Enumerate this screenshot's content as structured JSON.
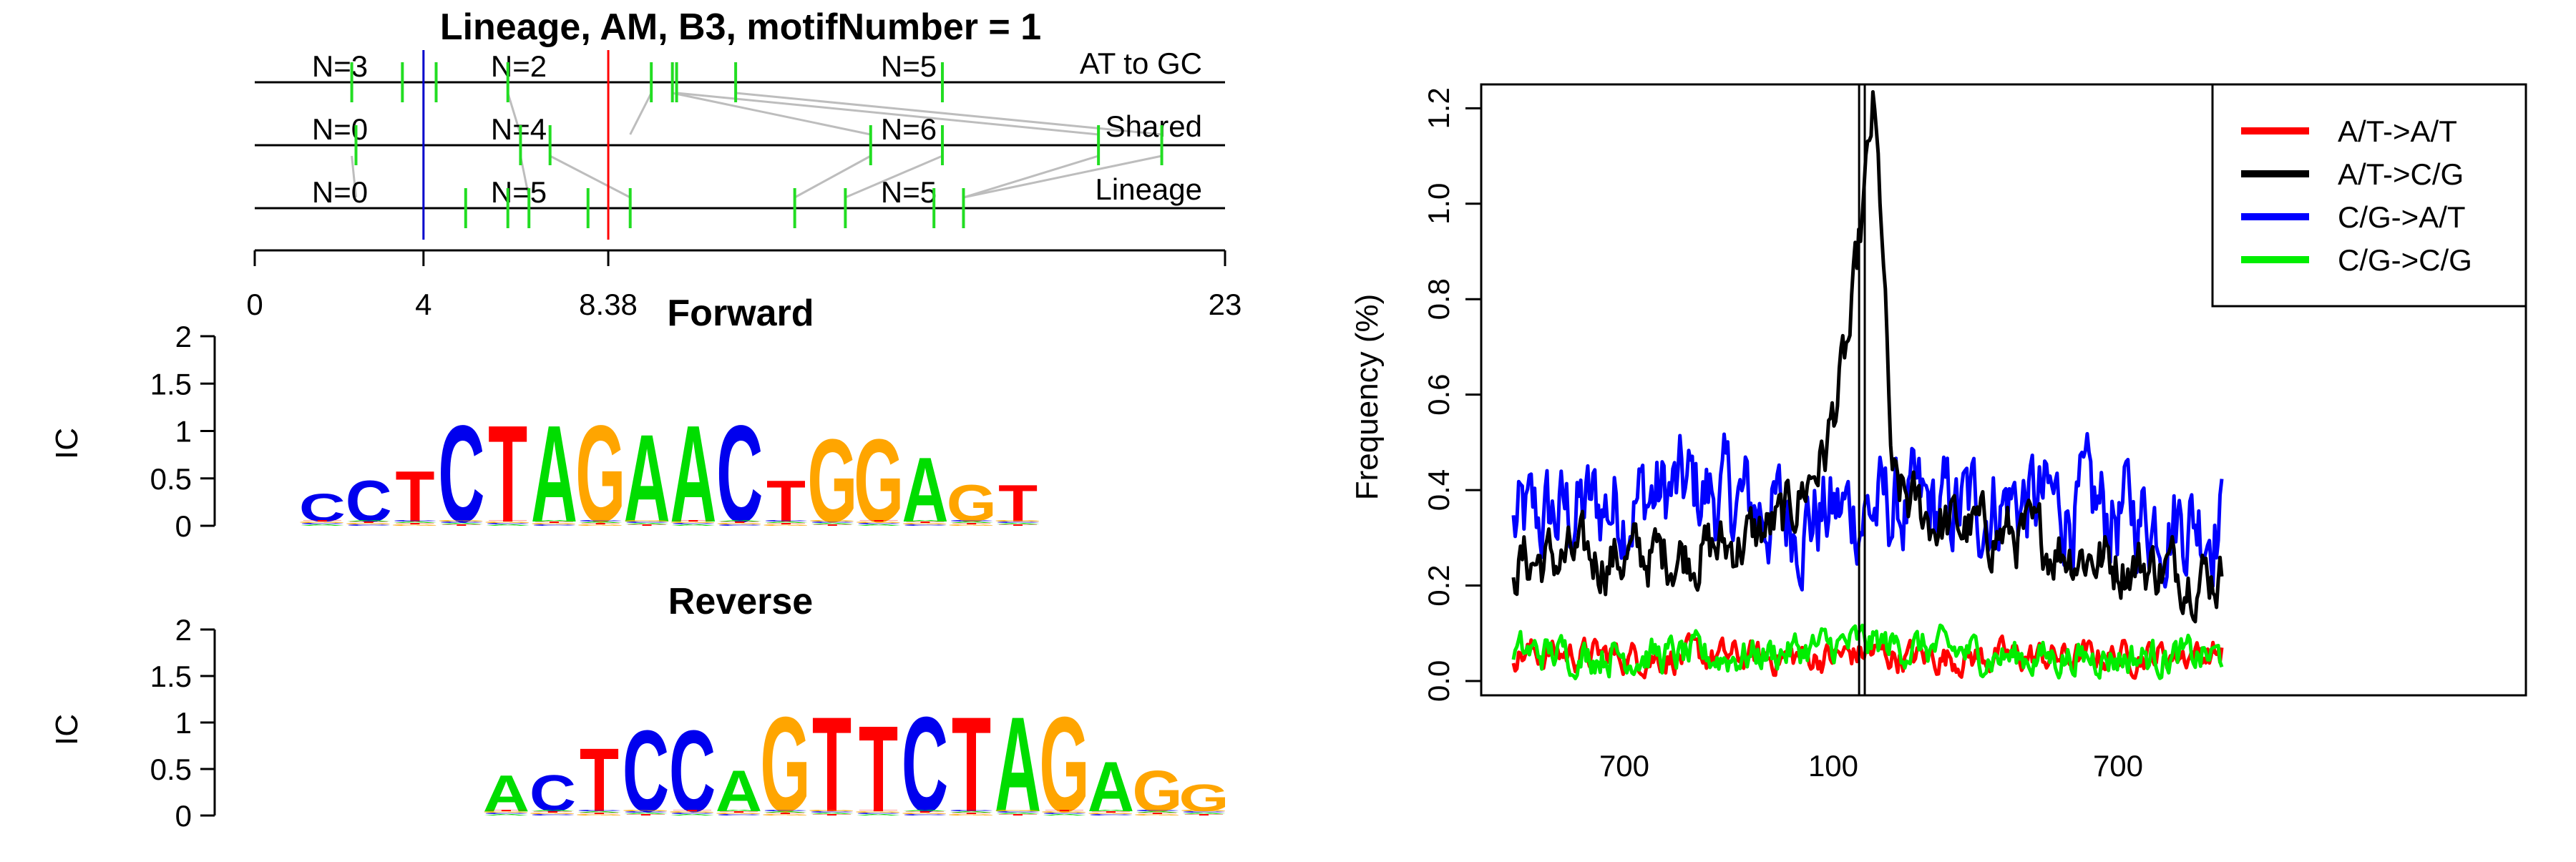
{
  "figure": {
    "left_title": "Lineage, AM, B3, motifNumber = 1",
    "forward_title": "Forward",
    "reverse_title": "Reverse",
    "ic_label": "IC"
  },
  "chart_data": [
    {
      "type": "diagram",
      "title": "Lineage, AM, B3, motifNumber = 1",
      "tracks": [
        {
          "label": "AT to GC",
          "counts": [
            "N=3",
            "N=2",
            "N=5"
          ]
        },
        {
          "label": "Shared",
          "counts": [
            "N=0",
            "N=4",
            "N=6"
          ]
        },
        {
          "label": "Lineage",
          "counts": [
            "N=0",
            "N=5",
            "N=5"
          ]
        }
      ],
      "axis": {
        "min": 0,
        "max": 23,
        "ticks": [
          0,
          4,
          8.38,
          23
        ],
        "tick_labels": [
          "0",
          "4",
          "8.38",
          "23"
        ]
      },
      "markers": [
        {
          "x": 4,
          "color": "#0000cc"
        },
        {
          "x": 8.38,
          "color": "#ff0000"
        }
      ],
      "sites": [
        [
          2.3,
          3.5,
          4.3,
          6.0,
          9.4,
          9.9,
          10.0,
          11.4,
          16.3
        ],
        [
          2.4,
          6.3,
          7.0,
          14.6,
          16.3,
          20.0,
          21.5
        ],
        [
          5.0,
          6.0,
          6.5,
          7.9,
          8.9,
          12.8,
          14.0,
          16.1,
          16.8
        ]
      ],
      "connections": [
        [
          6.0,
          6.3
        ],
        [
          9.4,
          8.9
        ],
        [
          9.9,
          14.6
        ],
        [
          10.0,
          20.0
        ],
        [
          11.4,
          21.5
        ],
        [
          2.3,
          2.4
        ],
        [
          6.3,
          6.5
        ],
        [
          7.0,
          8.9
        ],
        [
          14.6,
          12.8
        ],
        [
          16.3,
          14.0
        ],
        [
          20.0,
          16.8
        ],
        [
          21.5,
          16.8
        ]
      ]
    },
    {
      "type": "sequence_logo",
      "title": "Forward",
      "ylabel": "IC",
      "ylim": [
        0,
        2
      ],
      "yticks": [
        "0",
        "0.5",
        "1",
        "1.5",
        "2"
      ],
      "letters": [
        "C",
        "C",
        "T",
        "C",
        "T",
        "A",
        "G",
        "A",
        "A",
        "C",
        "T",
        "G",
        "G",
        "A",
        "G",
        "T"
      ],
      "heights": [
        0.3,
        0.45,
        0.55,
        1.05,
        1.05,
        1.05,
        1.05,
        0.95,
        1.05,
        1.05,
        0.45,
        0.9,
        0.9,
        0.7,
        0.4,
        0.4
      ]
    },
    {
      "type": "sequence_logo",
      "title": "Reverse",
      "ylabel": "IC",
      "ylim": [
        0,
        2
      ],
      "yticks": [
        "0",
        "0.5",
        "1",
        "1.5",
        "2"
      ],
      "letters": [
        "A",
        "C",
        "T",
        "C",
        "C",
        "A",
        "G",
        "T",
        "T",
        "C",
        "T",
        "A",
        "G",
        "A",
        "G",
        "G"
      ],
      "heights": [
        0.4,
        0.4,
        0.7,
        0.9,
        0.9,
        0.45,
        1.05,
        1.05,
        0.95,
        1.05,
        1.05,
        1.05,
        1.05,
        0.55,
        0.45,
        0.3
      ]
    },
    {
      "type": "line",
      "ylabel": "Frequency (%)",
      "ylim": [
        -0.03,
        1.25
      ],
      "yticks": [
        0.0,
        0.2,
        0.4,
        0.6,
        0.8,
        1.0,
        1.2
      ],
      "ytick_labels": [
        "0.0",
        "0.2",
        "0.4",
        "0.6",
        "0.8",
        "1.0",
        "1.2"
      ],
      "xticks": [
        "700",
        "100",
        "700"
      ],
      "legend_position": "top-right",
      "series": [
        {
          "name": "A/T->A/T",
          "color": "#ff0000",
          "profile": [
            [
              0,
              0.06
            ],
            [
              0.2,
              0.05
            ],
            [
              0.45,
              0.05
            ],
            [
              0.5,
              0.06
            ],
            [
              0.55,
              0.05
            ],
            [
              0.8,
              0.05
            ],
            [
              1,
              0.06
            ]
          ],
          "noise": 0.06
        },
        {
          "name": "A/T->C/G",
          "color": "#000000",
          "profile": [
            [
              0,
              0.25
            ],
            [
              0.18,
              0.26
            ],
            [
              0.3,
              0.28
            ],
            [
              0.38,
              0.33
            ],
            [
              0.44,
              0.48
            ],
            [
              0.475,
              0.72
            ],
            [
              0.495,
              1.0
            ],
            [
              0.508,
              1.2
            ],
            [
              0.52,
              0.95
            ],
            [
              0.535,
              0.4
            ],
            [
              0.6,
              0.33
            ],
            [
              0.72,
              0.3
            ],
            [
              0.85,
              0.25
            ],
            [
              1,
              0.22
            ]
          ],
          "noise": 0.12
        },
        {
          "name": "C/G->A/T",
          "color": "#0000ff",
          "profile": [
            [
              0,
              0.32
            ],
            [
              0.1,
              0.36
            ],
            [
              0.25,
              0.4
            ],
            [
              0.4,
              0.34
            ],
            [
              0.5,
              0.36
            ],
            [
              0.6,
              0.35
            ],
            [
              0.7,
              0.38
            ],
            [
              0.85,
              0.35
            ],
            [
              1,
              0.34
            ]
          ],
          "noise": 0.2
        },
        {
          "name": "C/G->C/G",
          "color": "#00ee00",
          "profile": [
            [
              0,
              0.06
            ],
            [
              0.3,
              0.05
            ],
            [
              0.5,
              0.08
            ],
            [
              0.7,
              0.05
            ],
            [
              1,
              0.05
            ]
          ],
          "noise": 0.07
        }
      ],
      "vlines": [
        0.488,
        0.496
      ]
    }
  ]
}
